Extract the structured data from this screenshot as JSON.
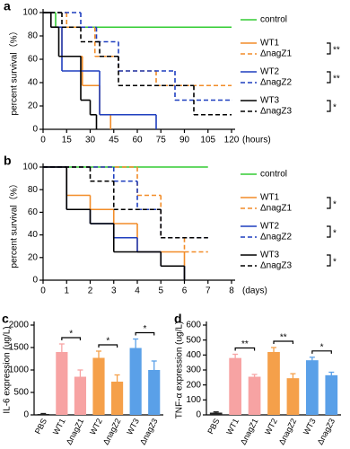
{
  "chart_data": [
    {
      "type": "survival",
      "panel_label": "a",
      "ylabel": "percent survival（%）",
      "xlabel": "(hours)",
      "xlim": [
        0,
        120
      ],
      "xticks": [
        0,
        15,
        30,
        45,
        60,
        75,
        90,
        105,
        120
      ],
      "ylim": [
        0,
        100
      ],
      "yticks": [
        0,
        20,
        40,
        60,
        80,
        100
      ],
      "series": [
        {
          "name": "control",
          "color": "#33cc33",
          "dashed": false,
          "x": [
            0,
            8,
            120
          ],
          "values": [
            100,
            87.5,
            87.5
          ]
        },
        {
          "name": "WT1",
          "color": "#f28c28",
          "dashed": false,
          "x": [
            0,
            5,
            12,
            25,
            36,
            43
          ],
          "values": [
            100,
            87.5,
            62.5,
            37.5,
            12.5,
            0
          ]
        },
        {
          "name": "ΔnagZ1",
          "color": "#f28c28",
          "dashed": true,
          "x": [
            0,
            15,
            33,
            48,
            72,
            120
          ],
          "values": [
            100,
            87.5,
            62.5,
            50,
            37.5,
            37.5
          ]
        },
        {
          "name": "WT2",
          "color": "#1f3fbf",
          "dashed": false,
          "x": [
            0,
            5,
            12,
            36,
            72
          ],
          "values": [
            100,
            87.5,
            50,
            12.5,
            0
          ]
        },
        {
          "name": "ΔnagZ2",
          "color": "#1f3fbf",
          "dashed": true,
          "x": [
            0,
            24,
            34,
            48,
            84,
            120
          ],
          "values": [
            100,
            87.5,
            75,
            50,
            25,
            25
          ]
        },
        {
          "name": "WT3",
          "color": "#000000",
          "dashed": false,
          "x": [
            0,
            5,
            10,
            24,
            30,
            34
          ],
          "values": [
            100,
            87.5,
            62.5,
            25,
            12.5,
            0
          ]
        },
        {
          "name": "ΔnagZ3",
          "color": "#000000",
          "dashed": true,
          "x": [
            0,
            12,
            24,
            36,
            48,
            96,
            120
          ],
          "values": [
            100,
            87.5,
            75,
            62.5,
            37.5,
            12.5,
            12.5
          ]
        }
      ],
      "annotations": [
        "**",
        "**",
        "*"
      ]
    },
    {
      "type": "survival",
      "panel_label": "b",
      "ylabel": "percent survival（%）",
      "xlabel": "(days)",
      "xlim": [
        0,
        8
      ],
      "xticks": [
        0,
        1,
        2,
        3,
        4,
        5,
        6,
        7,
        8
      ],
      "ylim": [
        0,
        100
      ],
      "yticks": [
        0,
        20,
        40,
        60,
        80,
        100
      ],
      "series": [
        {
          "name": "control",
          "color": "#33cc33",
          "dashed": false,
          "x": [
            0,
            7
          ],
          "values": [
            100,
            100
          ]
        },
        {
          "name": "WT1",
          "color": "#f28c28",
          "dashed": false,
          "x": [
            0,
            1,
            2,
            3,
            4,
            6
          ],
          "values": [
            100,
            75,
            62.5,
            50,
            25,
            0
          ]
        },
        {
          "name": "ΔnagZ1",
          "color": "#f28c28",
          "dashed": true,
          "x": [
            0,
            4,
            5,
            6,
            7
          ],
          "values": [
            100,
            75,
            37.5,
            25,
            25
          ]
        },
        {
          "name": "WT2",
          "color": "#1f3fbf",
          "dashed": false,
          "x": [
            0,
            1,
            2,
            3,
            4,
            5,
            6
          ],
          "values": [
            100,
            62.5,
            50,
            37.5,
            25,
            12.5,
            0
          ]
        },
        {
          "name": "ΔnagZ2",
          "color": "#1f3fbf",
          "dashed": true,
          "x": [
            0,
            3,
            4,
            5,
            7
          ],
          "values": [
            100,
            87.5,
            62.5,
            37.5,
            37.5
          ]
        },
        {
          "name": "WT3",
          "color": "#000000",
          "dashed": false,
          "x": [
            0,
            1,
            2,
            3,
            5,
            6
          ],
          "values": [
            100,
            62.5,
            50,
            25,
            12.5,
            0
          ]
        },
        {
          "name": "ΔnagZ3",
          "color": "#000000",
          "dashed": true,
          "x": [
            0,
            2,
            3,
            5,
            7
          ],
          "values": [
            100,
            87.5,
            62.5,
            37.5,
            37.5
          ]
        }
      ],
      "annotations": [
        "*",
        "*",
        "*"
      ]
    },
    {
      "type": "bar",
      "panel_label": "c",
      "ylabel": "IL-6 expression (ug/L)",
      "ylim": [
        0,
        2000
      ],
      "yticks": [
        0,
        500,
        1000,
        1500,
        2000
      ],
      "categories": [
        "PBS",
        "WT1",
        "ΔnagZ1",
        "WT2",
        "ΔnagZ2",
        "WT3",
        "ΔnagZ3"
      ],
      "values": [
        20,
        1400,
        850,
        1270,
        740,
        1490,
        1000
      ],
      "errors": [
        10,
        180,
        150,
        150,
        150,
        200,
        200
      ],
      "colors": [
        "#222222",
        "#f7a3a3",
        "#f7a3a3",
        "#f5a04a",
        "#f5a04a",
        "#5aa0e8",
        "#5aa0e8"
      ],
      "annotations": [
        "*",
        "*",
        "*"
      ]
    },
    {
      "type": "bar",
      "panel_label": "d",
      "ylabel": "TNF-α expression (ug/L)",
      "ylim": [
        0,
        600
      ],
      "yticks": [
        0,
        100,
        200,
        300,
        400,
        500,
        600
      ],
      "categories": [
        "PBS",
        "WT1",
        "ΔnagZ1",
        "WT2",
        "ΔnagZ2",
        "WT3",
        "ΔnagZ3"
      ],
      "values": [
        15,
        380,
        255,
        420,
        245,
        365,
        265
      ],
      "errors": [
        5,
        25,
        15,
        30,
        30,
        20,
        20
      ],
      "colors": [
        "#222222",
        "#f7a3a3",
        "#f7a3a3",
        "#f5a04a",
        "#f5a04a",
        "#5aa0e8",
        "#5aa0e8"
      ],
      "annotations": [
        "**",
        "**",
        "*"
      ]
    }
  ]
}
